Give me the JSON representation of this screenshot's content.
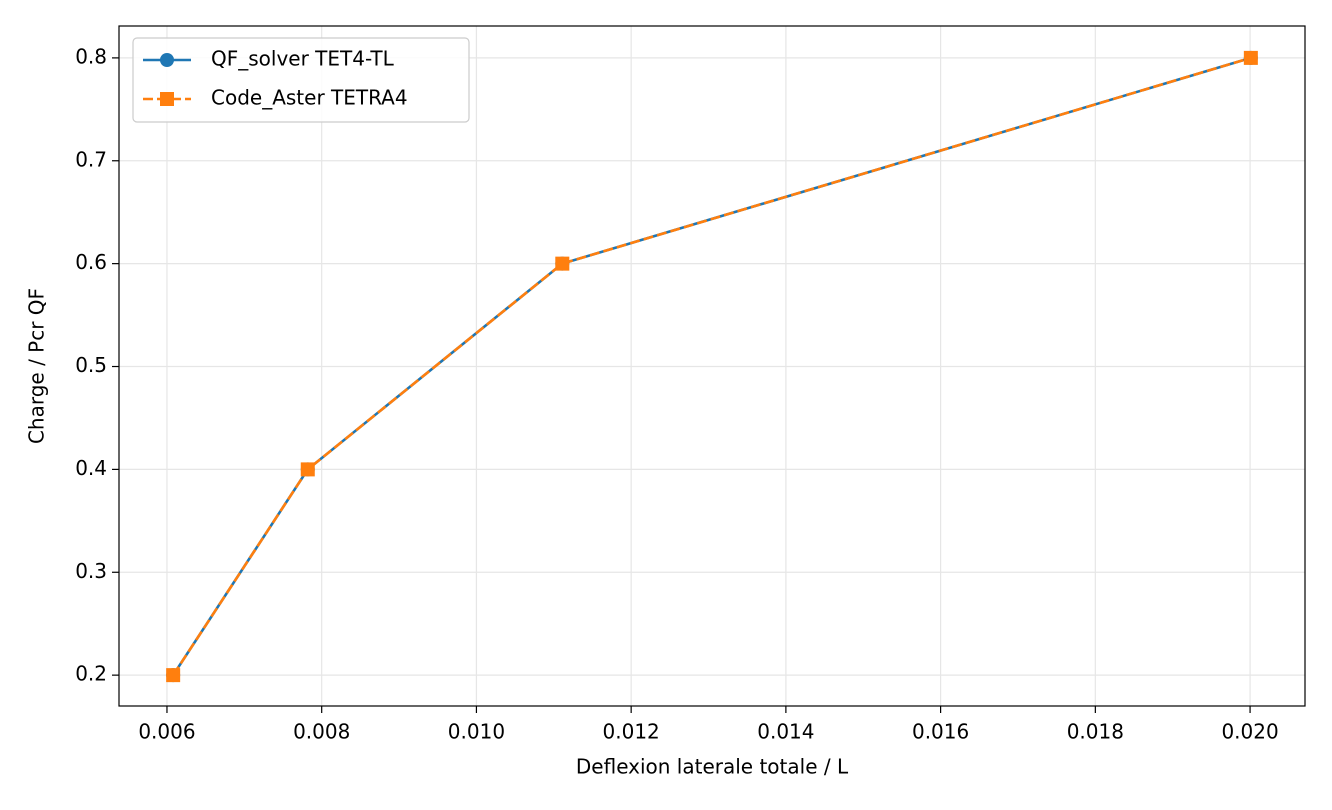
{
  "chart_data": {
    "type": "line",
    "x_label": "Deflexion laterale totale / L",
    "y_label": "Charge / Pcr QF",
    "xlim": [
      0.00538,
      0.02071
    ],
    "ylim": [
      0.17,
      0.831
    ],
    "xticks": [
      0.006,
      0.008,
      {
        "value": 0.01,
        "label": "0.010"
      },
      0.012,
      0.014,
      0.016,
      0.018,
      {
        "value": 0.02,
        "label": "0.020"
      }
    ],
    "yticks": [
      0.2,
      0.3,
      0.4,
      0.5,
      0.6,
      0.7,
      0.8
    ],
    "grid": true,
    "legend": "upper left",
    "x": [
      0.00608,
      0.00782,
      0.01111,
      0.02001
    ],
    "series": [
      {
        "name": "QF_solver TET4-TL",
        "color": "#1f77b4",
        "marker": "circle",
        "dash": false,
        "values": [
          0.2,
          0.4,
          0.6,
          0.8
        ]
      },
      {
        "name": "Code_Aster TETRA4",
        "color": "#ff7f0e",
        "marker": "square",
        "dash": true,
        "values": [
          0.2,
          0.4,
          0.6,
          0.8
        ]
      }
    ]
  }
}
